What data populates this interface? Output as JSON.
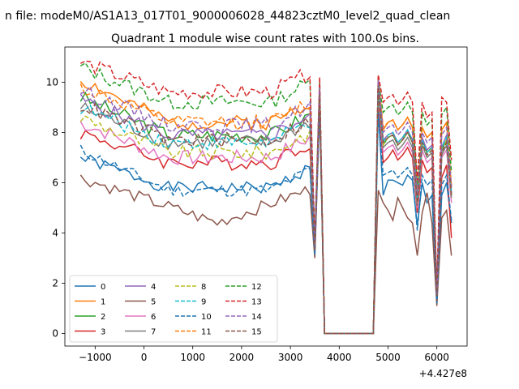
{
  "chart_data": {
    "type": "line",
    "suptitle": "n file: modeM0/AS1A13_017T01_9000006028_44823cztM0_level2_quad_clean",
    "title": "Quadrant 1 module wise count rates with 100.0s bins.",
    "xlabel": "",
    "ylabel": "",
    "x_offset_label": "+4.427e8",
    "xlim": [
      -1620,
      6620
    ],
    "ylim": [
      -0.5,
      11.4
    ],
    "xticks": [
      -1000,
      0,
      1000,
      2000,
      3000,
      4000,
      5000,
      6000
    ],
    "xtick_labels": [
      "−1000",
      "0",
      "1000",
      "2000",
      "3000",
      "4000",
      "5000",
      "6000"
    ],
    "yticks": [
      0,
      2,
      4,
      6,
      8,
      10
    ],
    "ytick_labels": [
      "0",
      "2",
      "4",
      "6",
      "8",
      "10"
    ],
    "grid": false,
    "legend_location": "lower-left",
    "legend_columns": 4,
    "x": [
      -1300,
      -1200,
      -1100,
      -1000,
      -900,
      -800,
      -700,
      -600,
      -500,
      -400,
      -300,
      -200,
      -100,
      0,
      100,
      200,
      300,
      400,
      500,
      600,
      700,
      800,
      900,
      1000,
      1100,
      1200,
      1300,
      1400,
      1500,
      1600,
      1700,
      1800,
      1900,
      2000,
      2100,
      2200,
      2300,
      2400,
      2500,
      2600,
      2700,
      2800,
      2900,
      3000,
      3100,
      3200,
      3300,
      3400,
      3500,
      3600,
      3700,
      3800,
      3900,
      4000,
      4100,
      4200,
      4300,
      4400,
      4500,
      4600,
      4700,
      4800,
      4900,
      5000,
      5100,
      5200,
      5300,
      5400,
      5500,
      5600,
      5700,
      5800,
      5900,
      6000,
      6100,
      6200,
      6300
    ],
    "gap_x": [
      3800,
      3900,
      4000,
      4100,
      4200,
      4300,
      4400,
      4500,
      4600,
      4700,
      4800
    ],
    "series": [
      {
        "name": "0",
        "color": "#1f77b4",
        "dash": "solid",
        "base": 7.0,
        "shift": 0.3,
        "scale": 0.95,
        "amp": 0.25,
        "seed": 1,
        "post": [
          3.2,
          9.2,
          0.6,
          8.9,
          5.5,
          6.1,
          6.1,
          6.0,
          5.9,
          6.3,
          6.1,
          4.3,
          6.0,
          5.2,
          5.5,
          1.2,
          5.5,
          6.0,
          4.4
        ]
      },
      {
        "name": "1",
        "color": "#ff7f0e",
        "dash": "solid",
        "base": 10.1,
        "shift": 0.8,
        "scale": 0.9,
        "amp": 0.3,
        "seed": 2,
        "post": [
          3.5,
          9.9,
          0.7,
          10.2,
          8.1,
          8.4,
          8.5,
          8.1,
          8.3,
          8.6,
          8.2,
          5.5,
          8.2,
          7.8,
          8.0,
          1.6,
          8.1,
          8.4,
          5.8
        ]
      },
      {
        "name": "2",
        "color": "#2ca02c",
        "dash": "solid",
        "base": 9.4,
        "shift": 0.6,
        "scale": 0.9,
        "amp": 0.3,
        "seed": 3,
        "post": [
          3.4,
          9.6,
          0.7,
          9.9,
          7.5,
          7.8,
          7.9,
          7.5,
          7.7,
          8.0,
          7.6,
          5.2,
          7.7,
          7.2,
          7.4,
          1.5,
          7.3,
          7.7,
          5.5
        ]
      },
      {
        "name": "3",
        "color": "#d62728",
        "dash": "solid",
        "base": 8.0,
        "shift": 0.3,
        "scale": 0.9,
        "amp": 0.3,
        "seed": 4,
        "post": [
          3.3,
          9.3,
          0.6,
          9.5,
          6.8,
          7.0,
          7.3,
          6.9,
          7.1,
          7.4,
          7.0,
          4.8,
          6.9,
          6.4,
          6.6,
          1.3,
          6.2,
          6.7,
          3.8
        ]
      },
      {
        "name": "4",
        "color": "#9467bd",
        "dash": "solid",
        "base": 9.3,
        "shift": 0.5,
        "scale": 0.9,
        "amp": 0.3,
        "seed": 5,
        "post": [
          3.5,
          9.7,
          0.7,
          10.0,
          7.7,
          7.9,
          8.0,
          7.6,
          7.8,
          8.1,
          7.7,
          5.3,
          7.8,
          7.3,
          7.5,
          1.5,
          7.4,
          7.9,
          5.6
        ]
      },
      {
        "name": "5",
        "color": "#8c564b",
        "dash": "solid",
        "base": 6.4,
        "shift": 0.8,
        "scale": 0.9,
        "amp": 0.25,
        "seed": 6,
        "post": [
          3.0,
          9.0,
          0.5,
          5.7,
          5.2,
          4.9,
          4.5,
          5.4,
          5.0,
          4.6,
          4.4,
          3.1,
          4.8,
          5.6,
          4.4,
          1.1,
          4.6,
          4.9,
          3.1
        ]
      },
      {
        "name": "6",
        "color": "#e377c2",
        "dash": "solid",
        "base": 8.4,
        "shift": 0.5,
        "scale": 0.9,
        "amp": 0.3,
        "seed": 7,
        "post": [
          3.4,
          9.4,
          0.6,
          9.6,
          7.2,
          7.4,
          7.5,
          7.1,
          7.3,
          7.6,
          7.2,
          5.0,
          7.3,
          6.8,
          7.0,
          1.4,
          7.0,
          7.3,
          5.2
        ]
      },
      {
        "name": "7",
        "color": "#7f7f7f",
        "dash": "solid",
        "base": 9.0,
        "shift": 0.5,
        "scale": 0.9,
        "amp": 0.3,
        "seed": 8,
        "post": [
          3.4,
          9.5,
          0.6,
          9.7,
          7.4,
          7.6,
          7.7,
          7.3,
          7.5,
          7.8,
          7.4,
          5.1,
          7.5,
          7.0,
          7.2,
          1.4,
          7.1,
          7.5,
          5.4
        ]
      },
      {
        "name": "8",
        "color": "#bcbd22",
        "dash": "dashed",
        "base": 8.6,
        "shift": 0.5,
        "scale": 0.9,
        "amp": 0.3,
        "seed": 9,
        "post": [
          3.4,
          9.5,
          0.6,
          9.8,
          7.5,
          7.8,
          7.9,
          7.5,
          7.7,
          8.0,
          7.6,
          5.2,
          7.6,
          7.1,
          7.3,
          1.5,
          7.2,
          7.7,
          5.5
        ]
      },
      {
        "name": "9",
        "color": "#17becf",
        "dash": "dashed",
        "base": 9.0,
        "shift": 0.5,
        "scale": 0.9,
        "amp": 0.3,
        "seed": 10,
        "post": [
          3.4,
          9.6,
          0.6,
          9.9,
          7.6,
          7.9,
          8.0,
          7.6,
          7.8,
          8.1,
          7.7,
          5.3,
          7.7,
          7.2,
          7.4,
          1.5,
          7.4,
          7.8,
          5.6
        ]
      },
      {
        "name": "10",
        "color": "#1f77b4",
        "dash": "dashed",
        "base": 7.3,
        "shift": 0.7,
        "scale": 0.9,
        "amp": 0.25,
        "seed": 11,
        "post": [
          3.1,
          9.1,
          0.6,
          8.8,
          6.3,
          6.4,
          6.5,
          6.2,
          6.4,
          6.6,
          6.3,
          4.1,
          6.3,
          5.9,
          6.1,
          1.2,
          5.9,
          6.3,
          4.5
        ]
      },
      {
        "name": "11",
        "color": "#ff7f0e",
        "dash": "dashed",
        "base": 9.8,
        "shift": 0.5,
        "scale": 0.9,
        "amp": 0.3,
        "seed": 12,
        "post": [
          3.5,
          9.9,
          0.7,
          10.2,
          8.2,
          8.4,
          8.5,
          8.1,
          8.3,
          8.6,
          8.2,
          5.6,
          8.2,
          7.8,
          8.0,
          1.6,
          8.1,
          8.4,
          5.9
        ]
      },
      {
        "name": "12",
        "color": "#2ca02c",
        "dash": "dashed",
        "base": 10.6,
        "shift": 0.5,
        "scale": 0.9,
        "amp": 0.3,
        "seed": 13,
        "post": [
          3.6,
          10.0,
          0.7,
          10.1,
          8.8,
          9.0,
          9.1,
          8.7,
          8.9,
          9.2,
          8.8,
          5.9,
          8.8,
          8.3,
          8.5,
          1.7,
          8.7,
          9.0,
          6.4
        ]
      },
      {
        "name": "13",
        "color": "#d62728",
        "dash": "dashed",
        "base": 10.8,
        "shift": 0.3,
        "scale": 0.9,
        "amp": 0.3,
        "seed": 14,
        "post": [
          3.7,
          10.2,
          0.7,
          10.3,
          9.2,
          9.4,
          9.5,
          9.1,
          9.3,
          9.6,
          9.2,
          6.1,
          9.2,
          8.6,
          8.8,
          1.7,
          9.4,
          9.2,
          6.9
        ]
      },
      {
        "name": "14",
        "color": "#9467bd",
        "dash": "dashed",
        "base": 9.7,
        "shift": 0.5,
        "scale": 0.9,
        "amp": 0.3,
        "seed": 15,
        "post": [
          3.5,
          9.8,
          0.7,
          10.1,
          8.0,
          8.2,
          8.3,
          7.9,
          8.1,
          8.4,
          8.0,
          5.5,
          8.0,
          7.6,
          7.8,
          1.6,
          7.9,
          8.2,
          5.8
        ]
      },
      {
        "name": "15",
        "color": "#8c564b",
        "dash": "dashed",
        "base": 9.1,
        "shift": 0.5,
        "scale": 0.9,
        "amp": 0.3,
        "seed": 16,
        "post": [
          3.4,
          9.5,
          0.6,
          9.8,
          7.6,
          7.8,
          7.9,
          7.5,
          7.7,
          8.0,
          7.6,
          5.2,
          7.6,
          7.1,
          7.3,
          1.5,
          7.2,
          7.6,
          5.5
        ]
      }
    ]
  }
}
